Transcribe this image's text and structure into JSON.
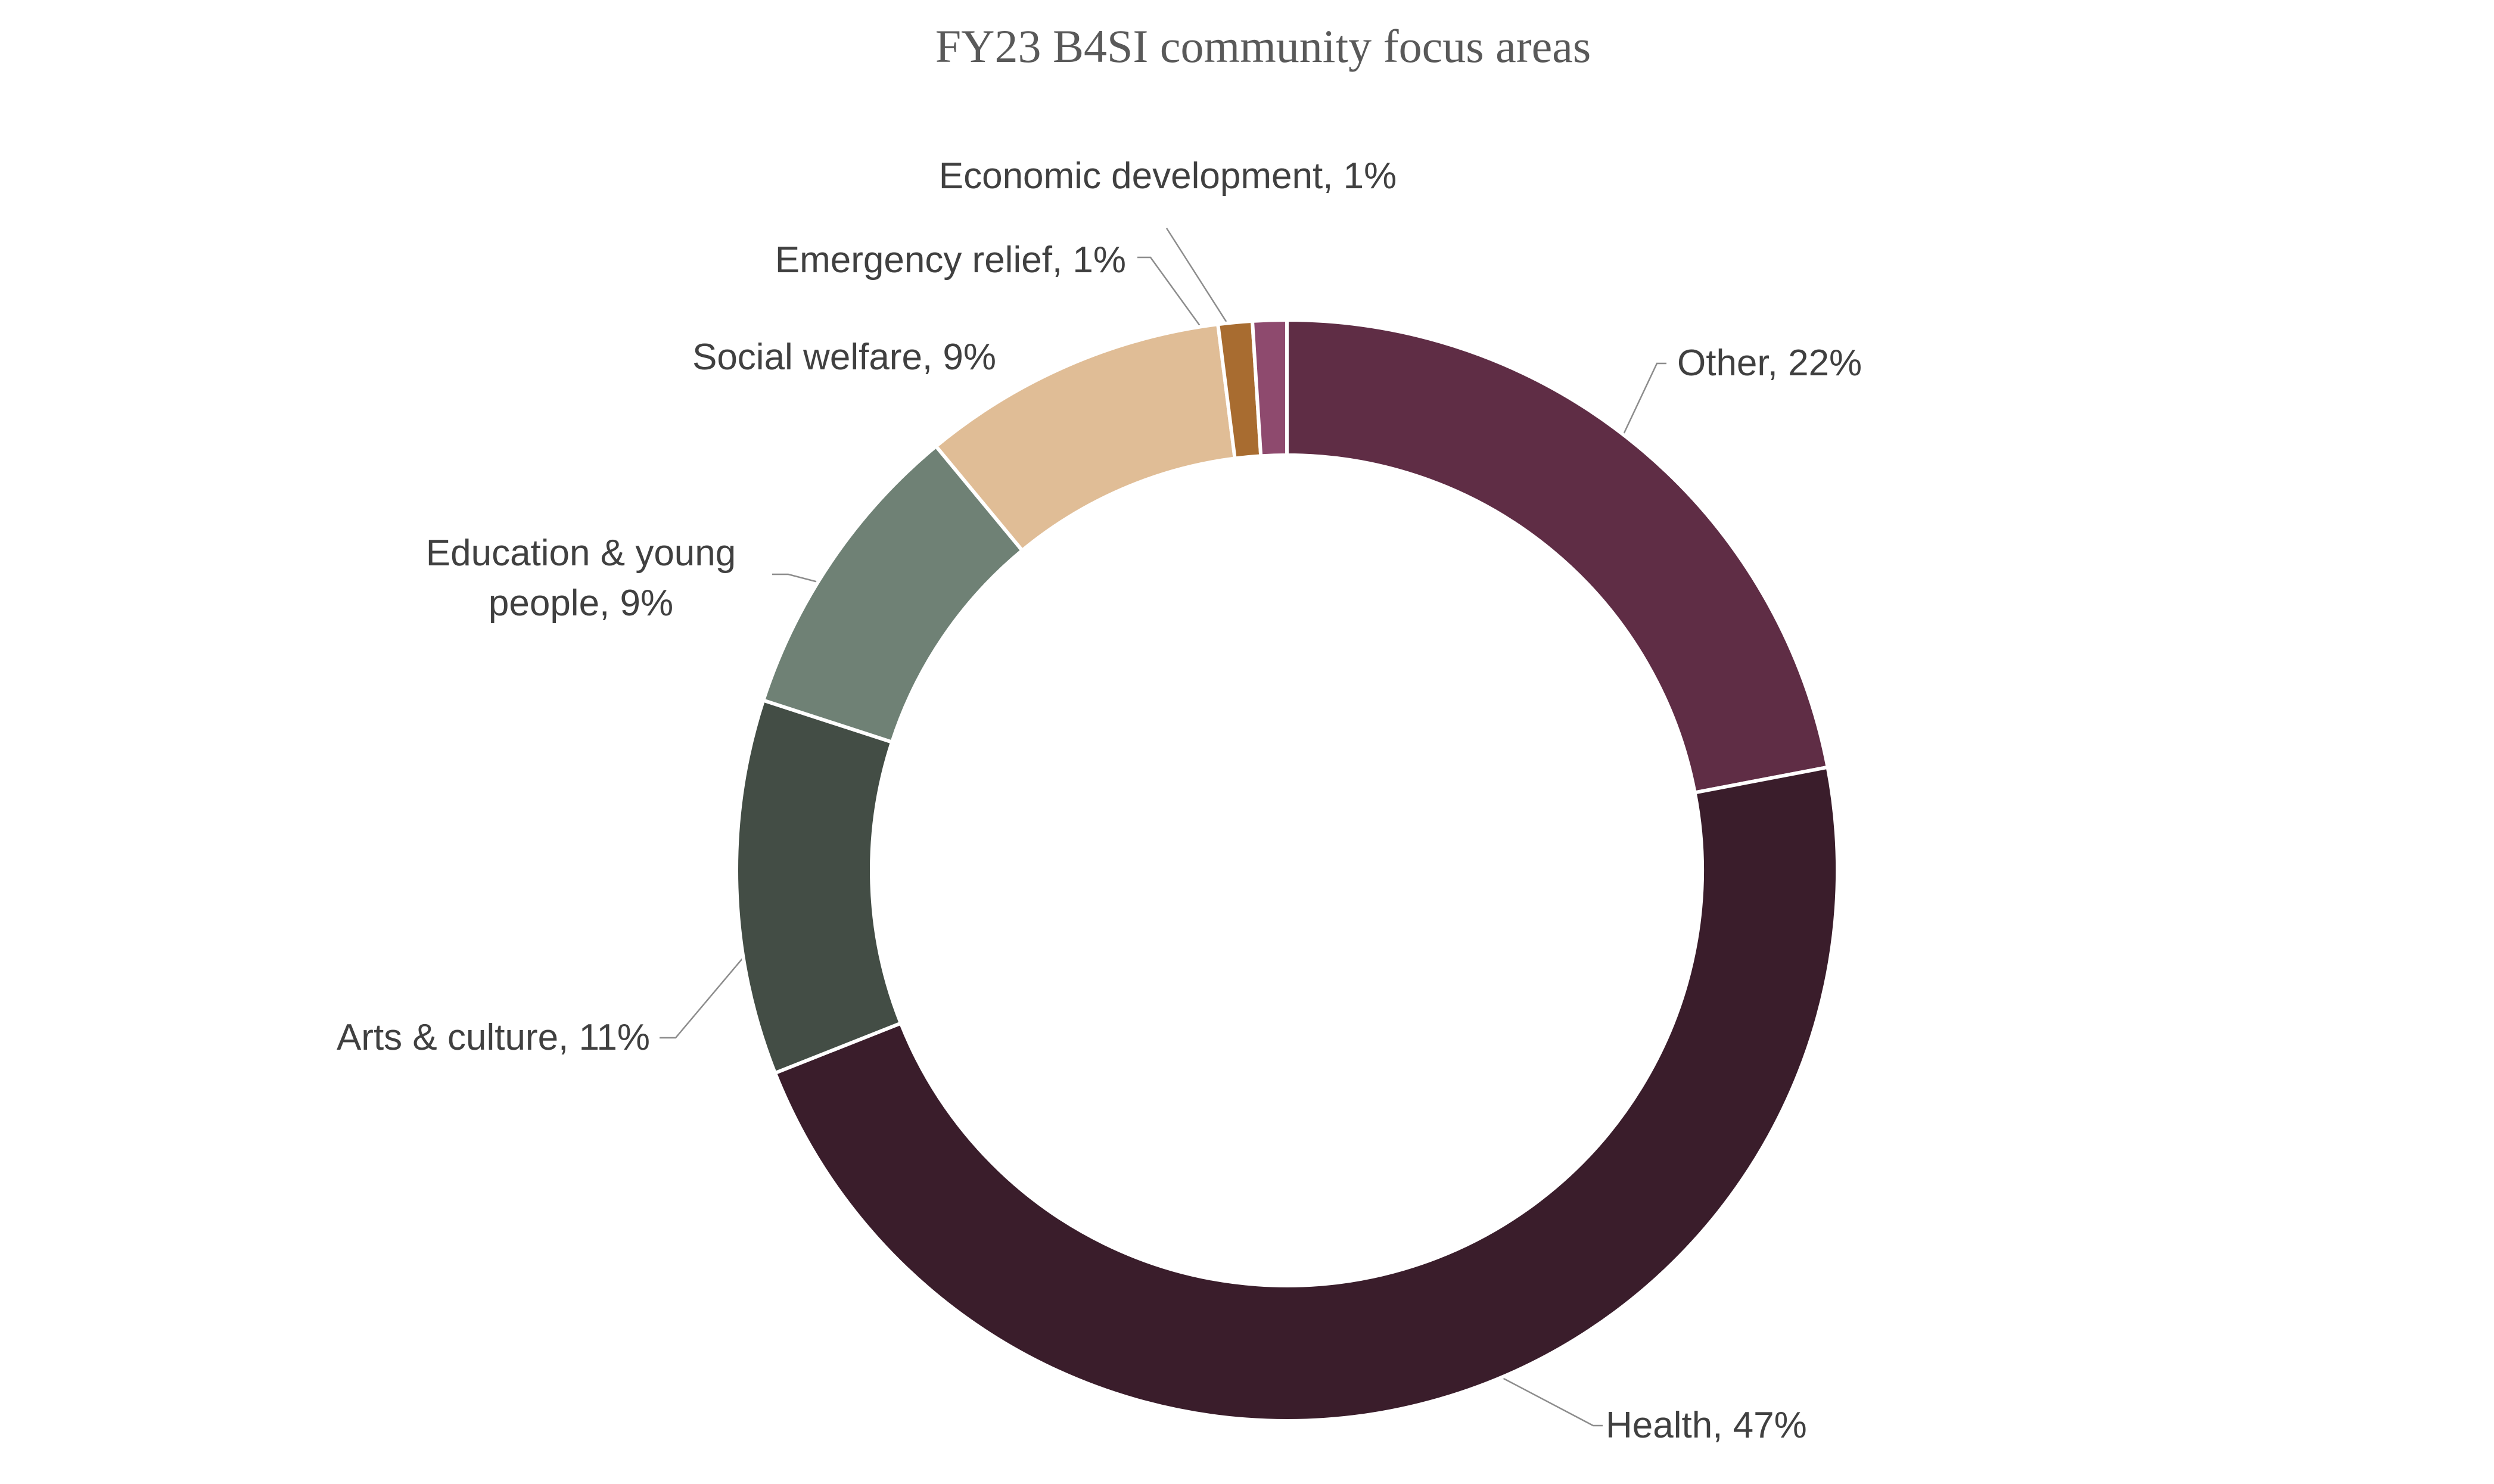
{
  "chart_data": {
    "type": "donut",
    "title": "FY23 B4SI community focus areas",
    "categories": [
      "Other",
      "Health",
      "Arts & culture",
      "Education & young people",
      "Social welfare",
      "Emergency relief",
      "Economic development"
    ],
    "values": [
      22,
      47,
      11,
      9,
      9,
      1,
      1
    ],
    "value_labels": [
      "Other, 22%",
      "Health, 47%",
      "Arts & culture, 11%",
      "Education & young people, 9%",
      "Social welfare, 9%",
      "Emergency relief, 1%",
      "Economic development, 1%"
    ],
    "colors": [
      "#5f2d45",
      "#3a1d2b",
      "#434d45",
      "#6f8175",
      "#e0bd96",
      "#a86c30",
      "#8e4a6e"
    ]
  }
}
